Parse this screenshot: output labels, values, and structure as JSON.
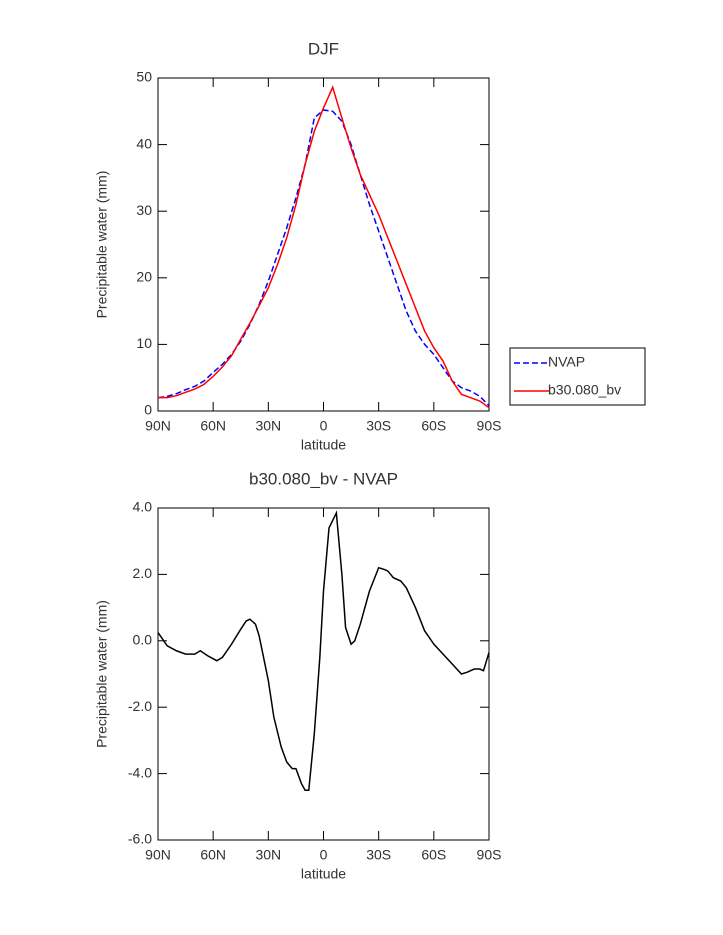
{
  "chart_data": [
    {
      "type": "line",
      "title": "DJF",
      "xlabel": "latitude",
      "ylabel": "Precipitable water (mm)",
      "x": [
        90,
        85,
        80,
        75,
        70,
        65,
        60,
        55,
        50,
        45,
        40,
        35,
        30,
        25,
        20,
        15,
        10,
        5,
        0,
        -5,
        -10,
        -15,
        -20,
        -25,
        -30,
        -35,
        -40,
        -45,
        -50,
        -55,
        -60,
        -65,
        -70,
        -75,
        -80,
        -85,
        -90
      ],
      "series": [
        {
          "name": "NVAP",
          "color": "#0000ff",
          "style": "dashed",
          "values": [
            2.0,
            2.2,
            2.6,
            3.2,
            3.7,
            4.5,
            5.8,
            7.0,
            8.5,
            10.5,
            13,
            16,
            19.5,
            23.5,
            27.5,
            32,
            37,
            44,
            45.2,
            45,
            43.5,
            40,
            35.5,
            31,
            27,
            23,
            19,
            15,
            12,
            10,
            8.5,
            6.5,
            4.5,
            3.5,
            3.0,
            2.2,
            0.8
          ]
        },
        {
          "name": "b30.080_bv",
          "color": "#ff0000",
          "style": "solid",
          "values": [
            2.0,
            2.0,
            2.3,
            2.8,
            3.3,
            4.0,
            5.2,
            6.6,
            8.3,
            10.8,
            13.2,
            15.8,
            18.5,
            22,
            26,
            31,
            37,
            42,
            45.5,
            48.6,
            44,
            39.5,
            35.5,
            32.5,
            29.5,
            26,
            22.5,
            19,
            15.5,
            12,
            9.5,
            7.5,
            4.5,
            2.5,
            2.0,
            1.5,
            0.5
          ]
        }
      ],
      "xlim": [
        90,
        -90
      ],
      "xticks": [
        {
          "value": 90,
          "label": "90N"
        },
        {
          "value": 60,
          "label": "60N"
        },
        {
          "value": 30,
          "label": "30N"
        },
        0,
        {
          "value": -30,
          "label": "30S"
        },
        {
          "value": -60,
          "label": "60S"
        },
        {
          "value": -90,
          "label": "90S"
        }
      ],
      "ylim": [
        0,
        50
      ],
      "yticks": [
        0,
        10,
        20,
        30,
        40,
        50
      ],
      "legend": "right"
    },
    {
      "type": "line",
      "title": "b30.080_bv - NVAP",
      "xlabel": "latitude",
      "ylabel": "Precipitable water (mm)",
      "x": [
        90,
        85,
        80,
        75,
        70,
        67,
        63,
        58,
        55,
        50,
        45,
        42,
        40,
        37,
        35,
        30,
        27,
        23,
        20,
        17,
        15,
        12,
        10,
        8,
        5,
        2,
        0,
        -3,
        -7,
        -10,
        -12,
        -15,
        -17,
        -20,
        -25,
        -30,
        -33,
        -35,
        -38,
        -42,
        -45,
        -50,
        -55,
        -60,
        -65,
        -70,
        -75,
        -78,
        -82,
        -85,
        -87,
        -90
      ],
      "values": [
        0.25,
        -0.15,
        -0.3,
        -0.4,
        -0.4,
        -0.3,
        -0.45,
        -0.6,
        -0.5,
        -0.1,
        0.35,
        0.6,
        0.65,
        0.5,
        0.15,
        -1.2,
        -2.3,
        -3.2,
        -3.65,
        -3.85,
        -3.85,
        -4.3,
        -4.5,
        -4.5,
        -2.8,
        -0.5,
        1.5,
        3.4,
        3.85,
        2.0,
        0.4,
        -0.1,
        0.0,
        0.5,
        1.5,
        2.2,
        2.15,
        2.1,
        1.9,
        1.8,
        1.6,
        1.0,
        0.3,
        -0.1,
        -0.4,
        -0.7,
        -1.0,
        -0.95,
        -0.85,
        -0.85,
        -0.9,
        -0.35
      ],
      "color": "#000000",
      "xlim": [
        90,
        -90
      ],
      "xticks": [
        {
          "value": 90,
          "label": "90N"
        },
        {
          "value": 60,
          "label": "60N"
        },
        {
          "value": 30,
          "label": "30N"
        },
        0,
        {
          "value": -30,
          "label": "30S"
        },
        {
          "value": -60,
          "label": "60S"
        },
        {
          "value": -90,
          "label": "90S"
        }
      ],
      "ylim": [
        -6,
        4
      ],
      "yticks": [
        {
          "value": -6,
          "label": "-6.0"
        },
        {
          "value": -4,
          "label": "-4.0"
        },
        {
          "value": -2,
          "label": "-2.0"
        },
        {
          "value": 0,
          "label": "0.0"
        },
        {
          "value": 2,
          "label": "2.0"
        },
        {
          "value": 4,
          "label": "4.0"
        }
      ]
    }
  ]
}
